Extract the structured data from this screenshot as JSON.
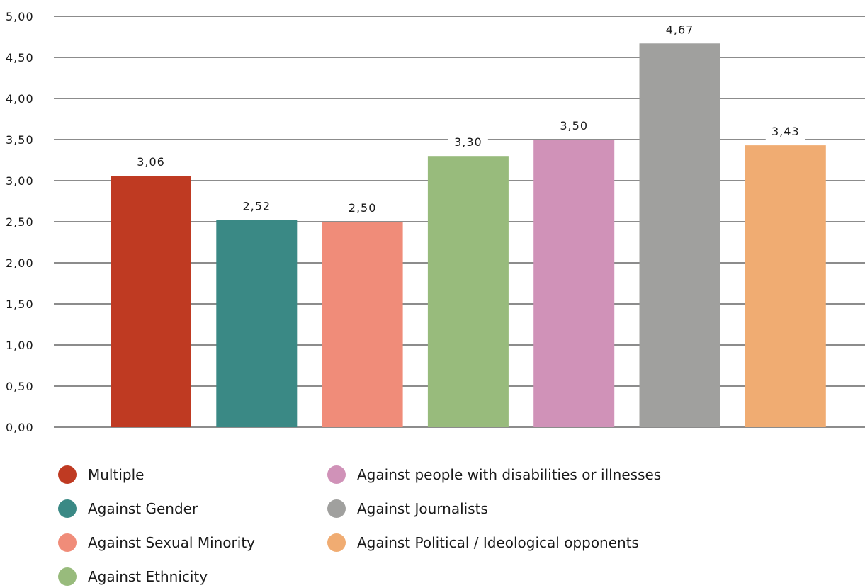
{
  "chart_data": {
    "type": "bar",
    "categories": [
      "Multiple",
      "Against Gender",
      "Against Sexual Minority",
      "Against Ethnicity",
      "Against people with disabilities or illnesses",
      "Against Journalists",
      "Against Political / Ideological opponents"
    ],
    "values": [
      3.06,
      2.52,
      2.5,
      3.3,
      3.5,
      4.67,
      3.43
    ],
    "value_labels": [
      "3,06",
      "2,52",
      "2,50",
      "3,30",
      "3,50",
      "4,67",
      "3,43"
    ],
    "colors": [
      "#bf3a22",
      "#3a8985",
      "#f08c79",
      "#98bb7c",
      "#d092b8",
      "#a0a09e",
      "#f0ac72"
    ],
    "yticks": [
      "0,00",
      "0,50",
      "1,00",
      "1,50",
      "2,00",
      "2,50",
      "3,00",
      "3,50",
      "4,00",
      "4,50",
      "5,00"
    ],
    "ylim": [
      0,
      5
    ],
    "title": "",
    "xlabel": "",
    "ylabel": "",
    "grid": true,
    "legend_placement": "bottom"
  },
  "legend": {
    "items": [
      {
        "label": "Multiple",
        "color": "#bf3a22"
      },
      {
        "label": "Against Gender",
        "color": "#3a8985"
      },
      {
        "label": "Against Sexual Minority",
        "color": "#f08c79"
      },
      {
        "label": "Against Ethnicity",
        "color": "#98bb7c"
      },
      {
        "label": "Against people with disabilities or illnesses",
        "color": "#d092b8"
      },
      {
        "label": "Against Journalists",
        "color": "#a0a09e"
      },
      {
        "label": "Against Political / Ideological opponents",
        "color": "#f0ac72"
      }
    ]
  }
}
